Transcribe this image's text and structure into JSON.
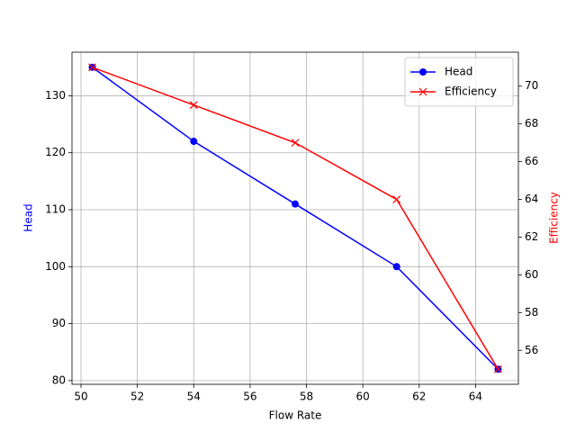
{
  "chart_data": {
    "type": "line",
    "x_label": "Flow Rate",
    "y_label": "Head",
    "y2_label": "Efficiency",
    "x": [
      50.4,
      54,
      57.6,
      61.2,
      64.8
    ],
    "series": [
      {
        "name": "Head",
        "color": "#0000ff",
        "marker": "circle",
        "values": [
          135,
          122,
          111,
          100,
          82
        ]
      },
      {
        "name": "Efficiency",
        "color": "#ff0000",
        "marker": "x",
        "axis": "y2",
        "values": [
          71,
          69,
          67,
          64,
          55
        ]
      }
    ],
    "xlim": [
      49.68,
      65.52
    ],
    "xticks": [
      50,
      52,
      54,
      56,
      58,
      60,
      62,
      64
    ],
    "ylim": [
      79.35,
      137.65
    ],
    "yticks": [
      80,
      90,
      100,
      110,
      120,
      130
    ],
    "y2lim": [
      54.2,
      71.8
    ],
    "y2ticks": [
      56,
      58,
      60,
      62,
      64,
      66,
      68,
      70
    ],
    "grid": true,
    "legend": "upper right"
  }
}
